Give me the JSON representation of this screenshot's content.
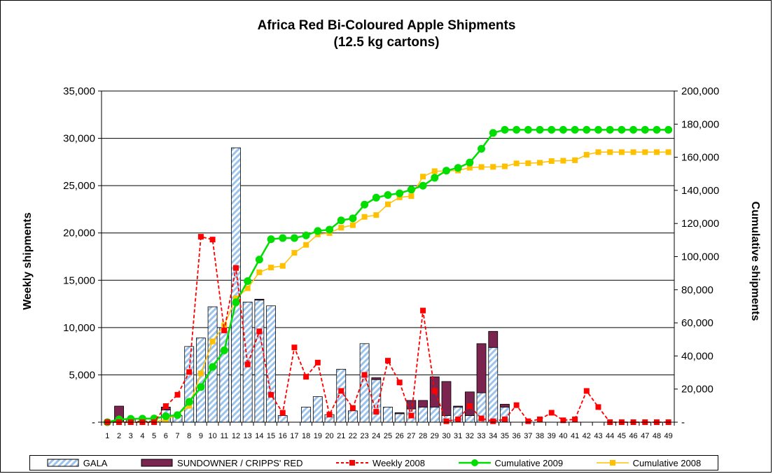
{
  "chart_data": {
    "type": "bar",
    "title": "Africa Red Bi-Coloured Apple Shipments",
    "subtitle": "(12.5 kg cartons)",
    "ylabel": "Weekly shipments",
    "y2label": "Cumulative shipments",
    "ylim": [
      0,
      35000
    ],
    "y2lim": [
      0,
      200000
    ],
    "yticks": [
      "-",
      "5,000",
      "10,000",
      "15,000",
      "20,000",
      "25,000",
      "30,000",
      "35,000"
    ],
    "y2ticks": [
      "-",
      "20,000",
      "40,000",
      "60,000",
      "80,000",
      "100,000",
      "120,000",
      "140,000",
      "160,000",
      "180,000",
      "200,000"
    ],
    "legend_position": "bottom",
    "grid": "horizontal",
    "categories": [
      "1",
      "2",
      "3",
      "4",
      "5",
      "6",
      "7",
      "8",
      "9",
      "10",
      "11",
      "12",
      "13",
      "14",
      "15",
      "16",
      "17",
      "18",
      "19",
      "20",
      "21",
      "22",
      "23",
      "24",
      "25",
      "26",
      "27",
      "28",
      "29",
      "30",
      "31",
      "32",
      "33",
      "34",
      "35",
      "36",
      "37",
      "38",
      "39",
      "40",
      "41",
      "42",
      "43",
      "44",
      "45",
      "46",
      "47",
      "48",
      "49"
    ],
    "series": [
      {
        "name": "GALA",
        "kind": "bar-stacked",
        "axis": "left",
        "color": "#a6c8ec",
        "values": [
          0,
          100,
          300,
          100,
          100,
          1300,
          700,
          8000,
          8900,
          12200,
          10000,
          29000,
          12700,
          12900,
          12300,
          700,
          0,
          1600,
          2700,
          800,
          5600,
          1200,
          8300,
          4500,
          1600,
          900,
          1400,
          1600,
          1600,
          700,
          1600,
          700,
          3100,
          7900,
          1600,
          0,
          0,
          0,
          0,
          0,
          0,
          0,
          0,
          0,
          0,
          0,
          0,
          0,
          0
        ]
      },
      {
        "name": "SUNDOWNER / CRIPPS' RED",
        "kind": "bar-stacked",
        "axis": "left",
        "color": "#7b2450",
        "values": [
          0,
          1600,
          0,
          0,
          0,
          300,
          0,
          0,
          0,
          0,
          0,
          0,
          0,
          100,
          0,
          0,
          0,
          0,
          0,
          0,
          0,
          0,
          0,
          200,
          0,
          100,
          900,
          700,
          3200,
          3600,
          100,
          2500,
          5200,
          1700,
          300,
          0,
          0,
          0,
          0,
          0,
          0,
          0,
          0,
          0,
          0,
          0,
          0,
          0,
          0
        ]
      },
      {
        "name": "Weekly 2008",
        "kind": "line-dashed",
        "axis": "left",
        "color": "#ff0000",
        "values": [
          0,
          0,
          0,
          0,
          0,
          1700,
          2900,
          5300,
          19600,
          19300,
          9700,
          16300,
          6100,
          9600,
          2900,
          1000,
          7900,
          4800,
          6300,
          800,
          3300,
          1500,
          5000,
          1100,
          6500,
          4200,
          700,
          11800,
          3300,
          100,
          300,
          1700,
          400,
          100,
          300,
          1800,
          100,
          300,
          1000,
          200,
          300,
          3300,
          1600,
          0,
          0,
          0,
          0,
          0,
          0
        ]
      },
      {
        "name": "Cumulative 2009",
        "kind": "line-solid",
        "axis": "right",
        "color": "#00dd00",
        "values": [
          0,
          1700,
          2000,
          2100,
          2200,
          3600,
          4300,
          12300,
          21200,
          33400,
          43400,
          72400,
          85200,
          98200,
          110500,
          111200,
          111200,
          112800,
          115500,
          116300,
          121900,
          123100,
          131400,
          135600,
          137200,
          138200,
          140500,
          142800,
          147600,
          151900,
          153600,
          156800,
          165100,
          174700,
          176600,
          176600,
          176600,
          176600,
          176600,
          176600,
          176600,
          176600,
          176600,
          176600,
          176600,
          176600,
          176600,
          176600,
          176600
        ]
      },
      {
        "name": "Cumulative 2008",
        "kind": "line-solid",
        "axis": "right",
        "color": "#ffc000",
        "values": [
          0,
          0,
          0,
          0,
          0,
          1700,
          4600,
          9900,
          29500,
          48800,
          58500,
          74800,
          80900,
          90500,
          93400,
          94400,
          102300,
          107100,
          113400,
          114200,
          117500,
          119000,
          124000,
          125100,
          131600,
          135800,
          136500,
          148300,
          151600,
          151700,
          152000,
          153700,
          154100,
          154200,
          154500,
          156300,
          156400,
          156700,
          157700,
          157900,
          158200,
          161500,
          163100,
          163100,
          163100,
          163100,
          163100,
          163100,
          163100
        ]
      }
    ]
  }
}
